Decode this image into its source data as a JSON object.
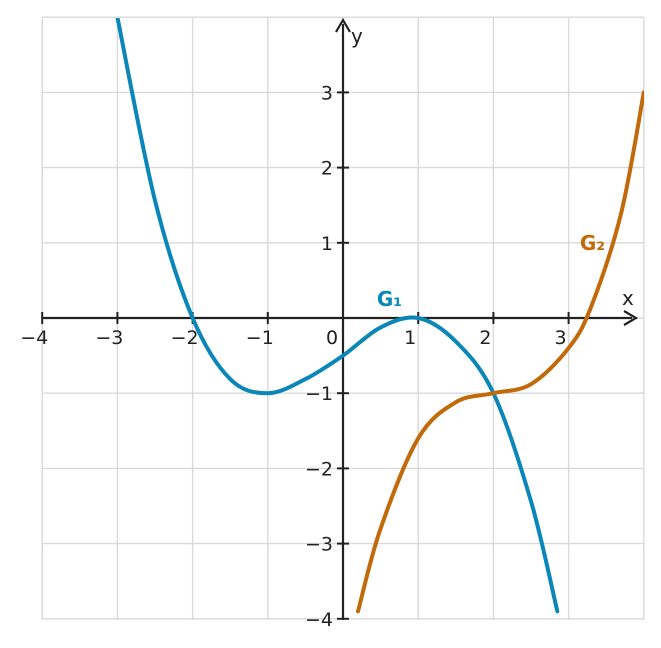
{
  "chart_data": {
    "type": "line",
    "title": "",
    "xlabel": "x",
    "ylabel": "y",
    "xlim": [
      -4,
      4
    ],
    "ylim": [
      -4,
      4
    ],
    "grid": true,
    "x_ticks": [
      {
        "value": -4,
        "label": "−4"
      },
      {
        "value": -3,
        "label": "−3"
      },
      {
        "value": -2,
        "label": "−2"
      },
      {
        "value": -1,
        "label": "−1"
      },
      {
        "value": 0,
        "label": "0"
      },
      {
        "value": 1,
        "label": "1"
      },
      {
        "value": 2,
        "label": "2"
      },
      {
        "value": 3,
        "label": "3"
      }
    ],
    "y_ticks": [
      {
        "value": 3,
        "label": "3"
      },
      {
        "value": 2,
        "label": "2"
      },
      {
        "value": 1,
        "label": "1"
      },
      {
        "value": -1,
        "label": "−1"
      },
      {
        "value": -2,
        "label": "−2"
      },
      {
        "value": -3,
        "label": "−3"
      },
      {
        "value": -4,
        "label": "−4"
      }
    ],
    "series": [
      {
        "name": "G₁",
        "color": "#0a86b8",
        "label_at": [
          0.45,
          0.25
        ],
        "x": [
          -3.0,
          -2.5,
          -2.0,
          -1.5,
          -1.0,
          -0.5,
          0.0,
          0.5,
          1.0,
          1.5,
          2.0,
          2.5,
          2.85
        ],
        "y": [
          4.0,
          1.5625,
          0.0,
          -0.8125,
          -1.0,
          -0.8125,
          -0.5,
          -0.125,
          0.0,
          -0.3125,
          -1.0,
          -2.4375,
          -3.9
        ]
      },
      {
        "name": "G₂",
        "color": "#c06a0a",
        "label_at": [
          3.15,
          1.0
        ],
        "x": [
          0.2,
          0.5,
          1.0,
          1.5,
          2.0,
          2.5,
          3.0,
          3.3,
          3.7,
          4.0
        ],
        "y": [
          -3.9,
          -2.8,
          -1.6,
          -1.12,
          -1.0,
          -0.88,
          -0.4,
          0.15,
          1.4,
          3.0
        ]
      }
    ]
  }
}
